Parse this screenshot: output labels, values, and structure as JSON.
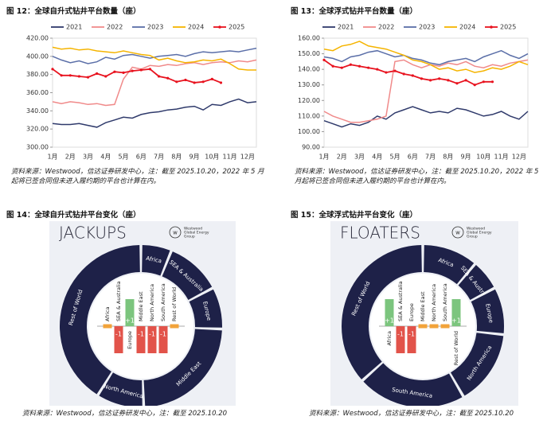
{
  "chart_data": [
    {
      "type": "line",
      "title": "图 12：全球自升式钻井平台数量（座）",
      "source": "资料来源：Westwood，信达证券研发中心，注：截至 2025.10.20，2022 年 5 月起将已签合同但未进入履约期的平台也计算在内。",
      "categories": [
        "1月",
        null,
        "2月",
        null,
        "3月",
        null,
        "4月",
        null,
        "5月",
        null,
        "6月",
        null,
        "7月",
        null,
        "8月",
        null,
        "9月",
        null,
        "10月",
        null,
        "11月",
        null,
        "12月",
        null
      ],
      "ylim": [
        300,
        420
      ],
      "yticks": [
        {
          "value": 300,
          "label": "300.00"
        },
        {
          "value": 320,
          "label": "320.00"
        },
        {
          "value": 340,
          "label": "340.00"
        },
        {
          "value": 360,
          "label": "360.00"
        },
        {
          "value": 380,
          "label": "380.00"
        },
        {
          "value": 400,
          "label": "400.00"
        },
        {
          "value": 420,
          "label": "420.00"
        }
      ],
      "series": [
        {
          "name": "2021",
          "color": "#2f3a6b",
          "values": [
            326,
            325,
            325,
            326,
            324,
            322,
            327,
            330,
            333,
            332,
            336,
            338,
            339,
            341,
            342,
            344,
            345,
            341,
            347,
            346,
            350,
            353,
            349,
            350
          ]
        },
        {
          "name": "2022",
          "color": "#f08a8a",
          "values": [
            350,
            348,
            350,
            349,
            347,
            348,
            346,
            347,
            375,
            388,
            386,
            390,
            389,
            391,
            390,
            392,
            393,
            391,
            393,
            394,
            393,
            395,
            394,
            396
          ]
        },
        {
          "name": "2023",
          "color": "#5b6fa8",
          "values": [
            400,
            396,
            393,
            395,
            392,
            394,
            399,
            397,
            401,
            402,
            400,
            398,
            400,
            401,
            402,
            400,
            403,
            405,
            404,
            405,
            406,
            405,
            407,
            409
          ]
        },
        {
          "name": "2024",
          "color": "#f5b400",
          "values": [
            410,
            408,
            409,
            407,
            408,
            406,
            405,
            404,
            406,
            404,
            402,
            401,
            396,
            398,
            395,
            393,
            394,
            396,
            395,
            397,
            392,
            386,
            385,
            385
          ]
        },
        {
          "name": "2025",
          "color": "#e8121e",
          "values": [
            386,
            379,
            379,
            378,
            377,
            381,
            378,
            383,
            382,
            384,
            385,
            386,
            378,
            376,
            372,
            374,
            371,
            372,
            375,
            371,
            null,
            null,
            null,
            null
          ]
        }
      ]
    },
    {
      "type": "line",
      "title": "图 13：全球浮式钻井平台数量（座）",
      "source": "资料来源：Westwood，信达证券研发中心，注：截至 2025.10.20，2022 年 5 月起将已签合同但未进入履约期的平台也计算在内。",
      "categories": [
        "1月",
        null,
        "2月",
        null,
        "3月",
        null,
        "4月",
        null,
        "5月",
        null,
        "6月",
        null,
        "7月",
        null,
        "8月",
        null,
        "9月",
        null,
        "10月",
        null,
        "11月",
        null,
        "12月",
        null
      ],
      "ylim": [
        90,
        160
      ],
      "yticks": [
        {
          "value": 90,
          "label": "90.00"
        },
        {
          "value": 100,
          "label": "100.00"
        },
        {
          "value": 110,
          "label": "110.00"
        },
        {
          "value": 120,
          "label": "120.00"
        },
        {
          "value": 130,
          "label": "130.00"
        },
        {
          "value": 140,
          "label": "140.00"
        },
        {
          "value": 150,
          "label": "150.00"
        },
        {
          "value": 160,
          "label": "160.00"
        }
      ],
      "series": [
        {
          "name": "2021",
          "color": "#2f3a6b",
          "values": [
            107,
            105,
            103,
            105,
            104,
            106,
            110,
            108,
            112,
            114,
            116,
            114,
            112,
            113,
            112,
            115,
            114,
            112,
            110,
            111,
            113,
            110,
            108,
            113
          ]
        },
        {
          "name": "2022",
          "color": "#f08a8a",
          "values": [
            113,
            110,
            108,
            106,
            106,
            107,
            108,
            110,
            145,
            146,
            143,
            141,
            143,
            142,
            144,
            143,
            145,
            142,
            141,
            143,
            142,
            144,
            145,
            146
          ]
        },
        {
          "name": "2023",
          "color": "#5b6fa8",
          "values": [
            148,
            147,
            145,
            148,
            149,
            151,
            152,
            150,
            148,
            149,
            147,
            146,
            144,
            143,
            145,
            146,
            147,
            145,
            148,
            150,
            152,
            149,
            147,
            150
          ]
        },
        {
          "name": "2024",
          "color": "#f5b400",
          "values": [
            153,
            152,
            155,
            156,
            158,
            155,
            154,
            153,
            151,
            149,
            146,
            145,
            143,
            140,
            141,
            139,
            140,
            138,
            139,
            141,
            140,
            142,
            145,
            143
          ]
        },
        {
          "name": "2025",
          "color": "#e8121e",
          "values": [
            146,
            142,
            141,
            143,
            142,
            141,
            140,
            138,
            139,
            137,
            136,
            134,
            133,
            134,
            133,
            131,
            133,
            130,
            132,
            132,
            null,
            null,
            null,
            null
          ]
        }
      ]
    },
    {
      "type": "donut",
      "title": "图 14：全球自升式钻井平台变化（座）",
      "source": "资料来源：Westwood，信达证券研发中心，注：截至 2025.10.20",
      "heading": "JACKUPS",
      "brand": [
        "Westwood",
        "Global Energy",
        "Group"
      ],
      "ring_color": "#1e2148",
      "colors": {
        "up": "#7cc57e",
        "down": "#e2534a",
        "flat": "#f2a33a"
      },
      "segments": [
        "Africa",
        "SEA & Australia",
        "Europe",
        "Middle East",
        "North America",
        "Rest of World"
      ],
      "categories": [
        "Africa",
        "SEA & Australia",
        "Europe",
        "Middle East",
        "North America",
        "South America",
        "Rest of World"
      ],
      "values": [
        0,
        -1,
        1,
        -1,
        -1,
        -1,
        0
      ],
      "value_labels": [
        null,
        "-1",
        "+1",
        "-1",
        "-1",
        "-1",
        null
      ]
    },
    {
      "type": "donut",
      "title": "图 15：全球浮式钻井平台变化（座）",
      "source": "资料来源：Westwood，信达证券研发中心，注：截至 2025.10.20",
      "heading": "FLOATERS",
      "brand": [
        "Westwood",
        "Global Energy",
        "Group"
      ],
      "ring_color": "#1e2148",
      "colors": {
        "up": "#7cc57e",
        "down": "#e2534a",
        "flat": "#f2a33a"
      },
      "segments": [
        "Africa",
        "SEA & Australia",
        "Europe",
        "North America",
        "South America",
        "Rest of World"
      ],
      "categories": [
        "Africa",
        "SEA & Australia",
        "Europe",
        "Middle East",
        "North America",
        "South America",
        "Rest of World"
      ],
      "values": [
        1,
        -1,
        -1,
        0,
        0,
        0,
        1
      ],
      "value_labels": [
        "+1",
        "-1",
        "-1",
        null,
        null,
        null,
        "+1"
      ]
    }
  ]
}
